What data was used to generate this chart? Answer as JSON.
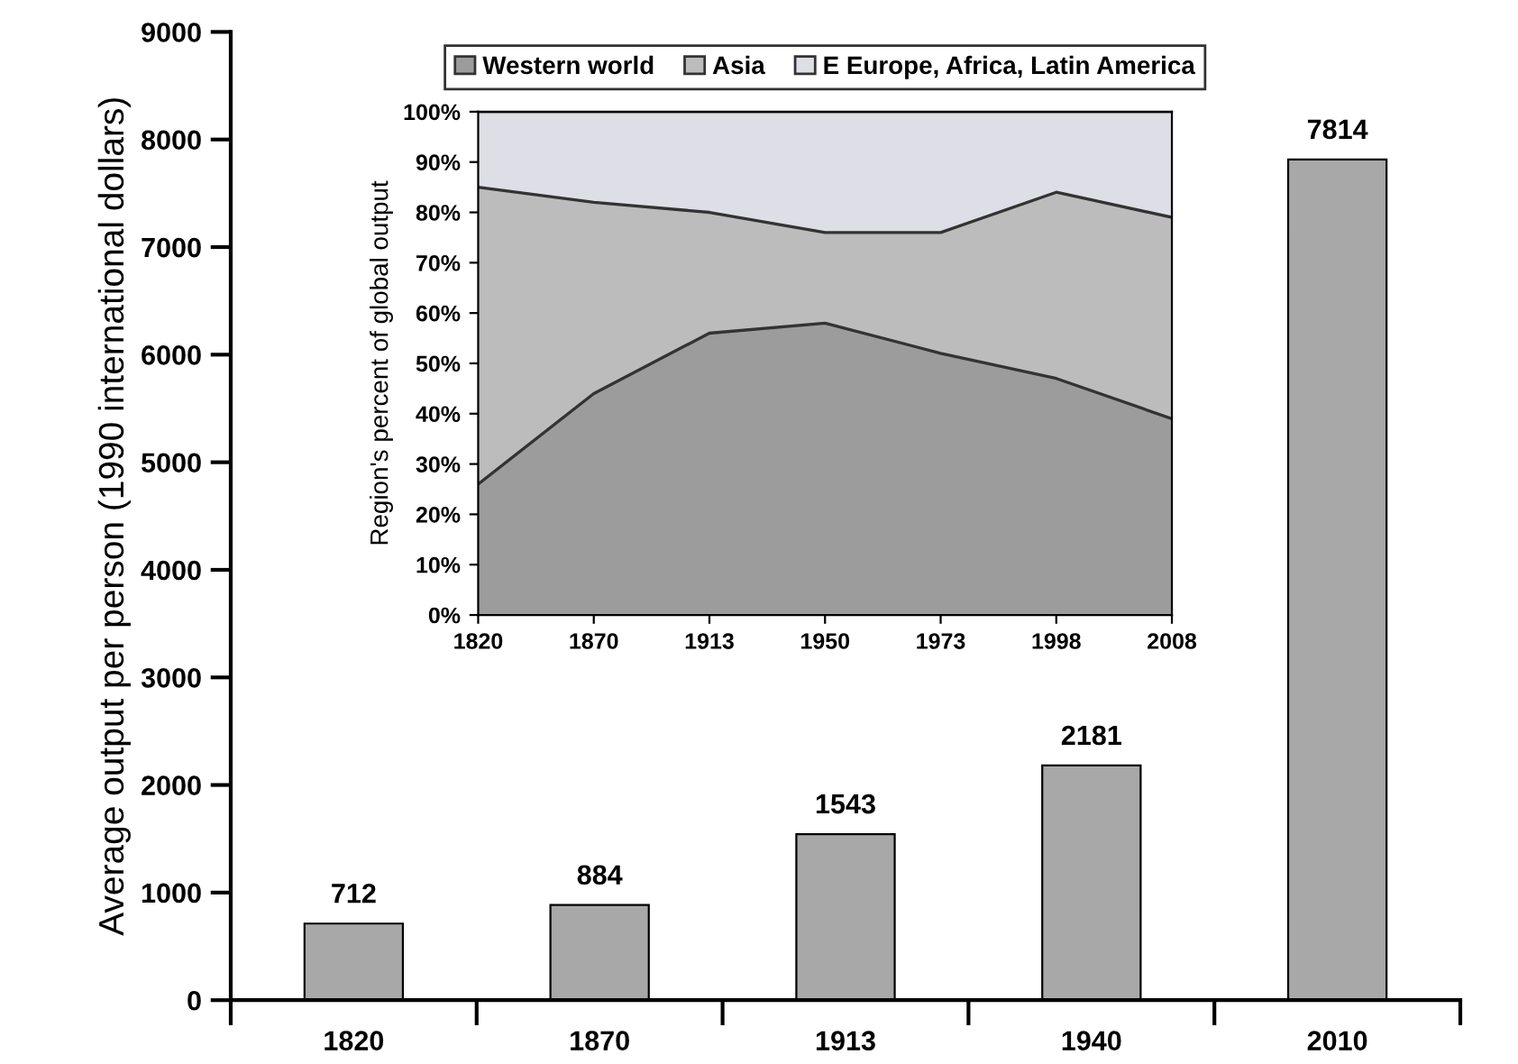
{
  "chart_data": [
    {
      "type": "bar",
      "ylabel": "Average output per person (1990 international dollars)",
      "categories": [
        "1820",
        "1870",
        "1913",
        "1940",
        "2010"
      ],
      "values": [
        712,
        884,
        1543,
        2181,
        7814
      ],
      "color": "#a8a8a8",
      "ylim": [
        0,
        9000
      ],
      "yticks": [
        0,
        1000,
        2000,
        3000,
        4000,
        5000,
        6000,
        7000,
        8000,
        9000
      ],
      "data_labels": true,
      "grid": false,
      "legend": false
    },
    {
      "type": "area",
      "stacked": true,
      "ylabel": "Region's percent of global output",
      "categories": [
        "1820",
        "1870",
        "1913",
        "1950",
        "1973",
        "1998",
        "2008"
      ],
      "series": [
        {
          "name": "Western world",
          "color": "#9c9c9c",
          "values": [
            26,
            44,
            56,
            58,
            52,
            47,
            39
          ]
        },
        {
          "name": "Asia",
          "color": "#bcbcbc",
          "values": [
            59,
            38,
            24,
            18,
            24,
            37,
            40
          ]
        },
        {
          "name": "E Europe, Africa, Latin America",
          "color": "#dedee6",
          "values": [
            15,
            18,
            20,
            24,
            24,
            16,
            21
          ]
        }
      ],
      "ylim": [
        0,
        100
      ],
      "yticks": [
        {
          "value": 0,
          "label": "0%"
        },
        {
          "value": 10,
          "label": "10%"
        },
        {
          "value": 20,
          "label": "20%"
        },
        {
          "value": 30,
          "label": "30%"
        },
        {
          "value": 40,
          "label": "40%"
        },
        {
          "value": 50,
          "label": "50%"
        },
        {
          "value": 60,
          "label": "60%"
        },
        {
          "value": 70,
          "label": "70%"
        },
        {
          "value": 80,
          "label": "80%"
        },
        {
          "value": 90,
          "label": "90%"
        },
        {
          "value": 100,
          "label": "100%"
        }
      ],
      "grid": false,
      "legend": "top"
    }
  ]
}
